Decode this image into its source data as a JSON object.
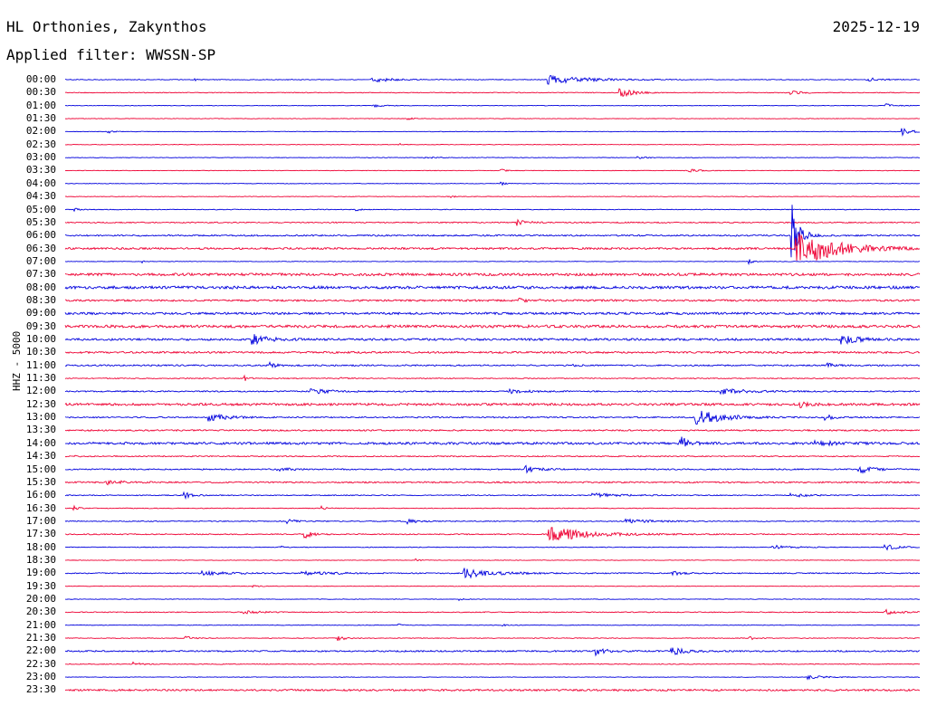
{
  "header": {
    "station": "HL Orthonies, Zakynthos",
    "date": "2025-12-19",
    "filter": "Applied filter: WWSSN-SP",
    "channel_label": "HHZ - 5000"
  },
  "colors": {
    "even": "#0000dd",
    "odd": "#ee0033",
    "text": "#000000"
  },
  "chart_data": {
    "type": "line",
    "title": "HL Orthonies, Zakynthos",
    "ylabel": "HHZ - 5000",
    "row_labels": [
      "00:00",
      "00:30",
      "01:00",
      "01:30",
      "02:00",
      "02:30",
      "03:00",
      "03:30",
      "04:00",
      "04:30",
      "05:00",
      "05:30",
      "06:00",
      "06:30",
      "07:00",
      "07:30",
      "08:00",
      "08:30",
      "09:00",
      "09:30",
      "10:00",
      "10:30",
      "11:00",
      "11:30",
      "12:00",
      "12:30",
      "13:00",
      "13:30",
      "14:00",
      "14:30",
      "15:00",
      "15:30",
      "16:00",
      "16:30",
      "17:00",
      "17:30",
      "18:00",
      "18:30",
      "19:00",
      "19:30",
      "20:00",
      "20:30",
      "21:00",
      "21:30",
      "22:00",
      "22:30",
      "23:00",
      "23:30"
    ],
    "rows": [
      {
        "noise": 0.4,
        "events": [
          {
            "x": 0.15,
            "a": 2,
            "w": 0.003
          },
          {
            "x": 0.36,
            "a": 3,
            "w": 0.02
          },
          {
            "x": 0.57,
            "a": 5,
            "w": 0.04
          },
          {
            "x": 0.94,
            "a": 2,
            "w": 0.015
          }
        ]
      },
      {
        "noise": 0.4,
        "events": [
          {
            "x": 0.65,
            "a": 5,
            "w": 0.015
          },
          {
            "x": 0.85,
            "a": 3,
            "w": 0.01
          }
        ]
      },
      {
        "noise": 0.3,
        "events": [
          {
            "x": 0.36,
            "a": 2,
            "w": 0.01
          },
          {
            "x": 0.96,
            "a": 2,
            "w": 0.01
          }
        ]
      },
      {
        "noise": 0.3,
        "events": [
          {
            "x": 0.4,
            "a": 1.5,
            "w": 0.005
          }
        ]
      },
      {
        "noise": 0.3,
        "events": [
          {
            "x": 0.05,
            "a": 2,
            "w": 0.005
          },
          {
            "x": 0.98,
            "a": 4,
            "w": 0.01
          }
        ]
      },
      {
        "noise": 0.3,
        "events": [
          {
            "x": 0.39,
            "a": 1.5,
            "w": 0.005
          }
        ]
      },
      {
        "noise": 0.3,
        "events": [
          {
            "x": 0.42,
            "a": 1.5,
            "w": 0.01
          },
          {
            "x": 0.67,
            "a": 1.5,
            "w": 0.01
          }
        ]
      },
      {
        "noise": 0.3,
        "events": [
          {
            "x": 0.51,
            "a": 2,
            "w": 0.005
          },
          {
            "x": 0.73,
            "a": 2,
            "w": 0.012
          }
        ]
      },
      {
        "noise": 0.3,
        "events": [
          {
            "x": 0.51,
            "a": 2,
            "w": 0.005
          }
        ]
      },
      {
        "noise": 0.3,
        "events": [
          {
            "x": 0.45,
            "a": 1.5,
            "w": 0.005
          }
        ]
      },
      {
        "noise": 0.4,
        "events": [
          {
            "x": 0.01,
            "a": 2,
            "w": 0.005
          },
          {
            "x": 0.34,
            "a": 1.5,
            "w": 0.005
          }
        ]
      },
      {
        "noise": 0.6,
        "events": [
          {
            "x": 0.53,
            "a": 3,
            "w": 0.012
          }
        ]
      },
      {
        "noise": 0.8,
        "events": [
          {
            "x": 0.85,
            "a": 40,
            "w": 0.008
          }
        ]
      },
      {
        "noise": 1,
        "events": [
          {
            "x": 0.86,
            "a": 20,
            "w": 0.04
          }
        ]
      },
      {
        "noise": 0.3,
        "events": [
          {
            "x": 0.09,
            "a": 1.5,
            "w": 0.003
          },
          {
            "x": 0.8,
            "a": 3,
            "w": 0.004
          }
        ]
      },
      {
        "noise": 1.4,
        "events": []
      },
      {
        "noise": 1.5,
        "events": []
      },
      {
        "noise": 1,
        "events": [
          {
            "x": 0.53,
            "a": 2,
            "w": 0.012
          }
        ]
      },
      {
        "noise": 1.2,
        "events": []
      },
      {
        "noise": 1.5,
        "events": []
      },
      {
        "noise": 1.2,
        "events": [
          {
            "x": 0.22,
            "a": 6,
            "w": 0.015
          },
          {
            "x": 0.91,
            "a": 5,
            "w": 0.015
          }
        ]
      },
      {
        "noise": 1,
        "events": []
      },
      {
        "noise": 0.8,
        "events": [
          {
            "x": 0.24,
            "a": 3,
            "w": 0.008
          },
          {
            "x": 0.59,
            "a": 2,
            "w": 0.008
          },
          {
            "x": 0.89,
            "a": 3,
            "w": 0.008
          }
        ]
      },
      {
        "noise": 0.5,
        "events": [
          {
            "x": 0.21,
            "a": 3,
            "w": 0.005
          },
          {
            "x": 0.32,
            "a": 2,
            "w": 0.005
          }
        ]
      },
      {
        "noise": 0.7,
        "events": [
          {
            "x": 0.29,
            "a": 2.5,
            "w": 0.02
          },
          {
            "x": 0.52,
            "a": 2,
            "w": 0.02
          },
          {
            "x": 0.77,
            "a": 3,
            "w": 0.03
          }
        ]
      },
      {
        "noise": 1.3,
        "events": [
          {
            "x": 0.86,
            "a": 3,
            "w": 0.01
          }
        ]
      },
      {
        "noise": 0.7,
        "events": [
          {
            "x": 0.17,
            "a": 4,
            "w": 0.02
          },
          {
            "x": 0.74,
            "a": 8,
            "w": 0.03
          },
          {
            "x": 0.89,
            "a": 3,
            "w": 0.01
          }
        ]
      },
      {
        "noise": 0.8,
        "events": []
      },
      {
        "noise": 1.3,
        "events": [
          {
            "x": 0.72,
            "a": 8,
            "w": 0.008
          },
          {
            "x": 0.88,
            "a": 2.5,
            "w": 0.02
          }
        ]
      },
      {
        "noise": 0.6,
        "events": [
          {
            "x": 0.01,
            "a": 2,
            "w": 0.003
          }
        ]
      },
      {
        "noise": 0.7,
        "events": [
          {
            "x": 0.25,
            "a": 2,
            "w": 0.02
          },
          {
            "x": 0.54,
            "a": 3.5,
            "w": 0.015
          },
          {
            "x": 0.93,
            "a": 4,
            "w": 0.015
          }
        ]
      },
      {
        "noise": 0.8,
        "events": [
          {
            "x": 0.05,
            "a": 2,
            "w": 0.02
          }
        ]
      },
      {
        "noise": 0.5,
        "events": [
          {
            "x": 0.14,
            "a": 3,
            "w": 0.01
          },
          {
            "x": 0.62,
            "a": 2,
            "w": 0.03
          },
          {
            "x": 0.85,
            "a": 2,
            "w": 0.02
          }
        ]
      },
      {
        "noise": 0.4,
        "events": [
          {
            "x": 0.01,
            "a": 2.5,
            "w": 0.005
          },
          {
            "x": 0.3,
            "a": 2,
            "w": 0.005
          }
        ]
      },
      {
        "noise": 0.5,
        "events": [
          {
            "x": 0.26,
            "a": 2.5,
            "w": 0.01
          },
          {
            "x": 0.4,
            "a": 3,
            "w": 0.01
          },
          {
            "x": 0.66,
            "a": 2,
            "w": 0.03
          }
        ]
      },
      {
        "noise": 0.6,
        "events": [
          {
            "x": 0.28,
            "a": 5,
            "w": 0.008
          },
          {
            "x": 0.57,
            "a": 8,
            "w": 0.04
          }
        ]
      },
      {
        "noise": 0.4,
        "events": [
          {
            "x": 0.25,
            "a": 2,
            "w": 0.005
          },
          {
            "x": 0.83,
            "a": 2,
            "w": 0.02
          },
          {
            "x": 0.96,
            "a": 3,
            "w": 0.015
          }
        ]
      },
      {
        "noise": 0.3,
        "events": [
          {
            "x": 0.41,
            "a": 1.5,
            "w": 0.005
          }
        ]
      },
      {
        "noise": 0.6,
        "events": [
          {
            "x": 0.16,
            "a": 2,
            "w": 0.03
          },
          {
            "x": 0.28,
            "a": 2,
            "w": 0.03
          },
          {
            "x": 0.47,
            "a": 6,
            "w": 0.03
          },
          {
            "x": 0.71,
            "a": 2,
            "w": 0.015
          }
        ]
      },
      {
        "noise": 0.3,
        "events": [
          {
            "x": 0.22,
            "a": 1.5,
            "w": 0.005
          }
        ]
      },
      {
        "noise": 0.3,
        "events": [
          {
            "x": 0.46,
            "a": 2,
            "w": 0.005
          }
        ]
      },
      {
        "noise": 0.5,
        "events": [
          {
            "x": 0.21,
            "a": 2,
            "w": 0.015
          },
          {
            "x": 0.96,
            "a": 3,
            "w": 0.015
          }
        ]
      },
      {
        "noise": 0.3,
        "events": [
          {
            "x": 0.39,
            "a": 1.5,
            "w": 0.005
          },
          {
            "x": 0.51,
            "a": 1.5,
            "w": 0.005
          }
        ]
      },
      {
        "noise": 0.4,
        "events": [
          {
            "x": 0.14,
            "a": 2.5,
            "w": 0.008
          },
          {
            "x": 0.32,
            "a": 2.5,
            "w": 0.008
          },
          {
            "x": 0.8,
            "a": 2,
            "w": 0.008
          }
        ]
      },
      {
        "noise": 0.8,
        "events": [
          {
            "x": 0.62,
            "a": 5,
            "w": 0.01
          },
          {
            "x": 0.71,
            "a": 4,
            "w": 0.015
          }
        ]
      },
      {
        "noise": 0.4,
        "events": [
          {
            "x": 0.08,
            "a": 2,
            "w": 0.008
          }
        ]
      },
      {
        "noise": 0.3,
        "events": [
          {
            "x": 0.87,
            "a": 2,
            "w": 0.02
          }
        ]
      },
      {
        "noise": 1,
        "events": []
      }
    ]
  }
}
